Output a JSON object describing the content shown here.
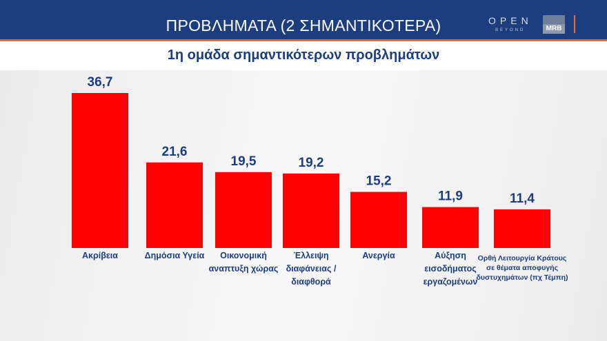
{
  "header": {
    "title": "ΠΡΟΒΛΗΜΑΤΑ (2 ΣΗΜΑΝΤΙΚΟΤΕΡΑ)",
    "logo_open": "OPEN",
    "logo_beyond": "BEYOND",
    "logo_mrb": "MRB"
  },
  "chart_data": {
    "type": "bar",
    "title": "1η ομάδα σημαντικότερων προβλημάτων",
    "categories": [
      "Ακρίβεια",
      "Δημόσια Υγεία",
      "Οικονομική αναπτυξη χώρας",
      "Έλλειψη διαφάνειας / διαφθορά",
      "Ανεργία",
      "Αύξηση εισοδήματος εργαζομένων",
      "Ορθή Λειτουργία Κράτους σε θέματα αποφυγής δυστυχημάτων (πχ Τέμπη)"
    ],
    "values": [
      36.7,
      21.6,
      19.5,
      19.2,
      15.2,
      11.9,
      11.4
    ],
    "value_labels": [
      "36,7",
      "21,6",
      "19,5",
      "19,2",
      "15,2",
      "11,9",
      "11,4"
    ],
    "xlabel": "",
    "ylabel": "",
    "ylim": [
      0,
      40
    ],
    "grid": false,
    "legend": "none",
    "bar_color": "#ff0000",
    "label_color": "#1c3d7e"
  }
}
